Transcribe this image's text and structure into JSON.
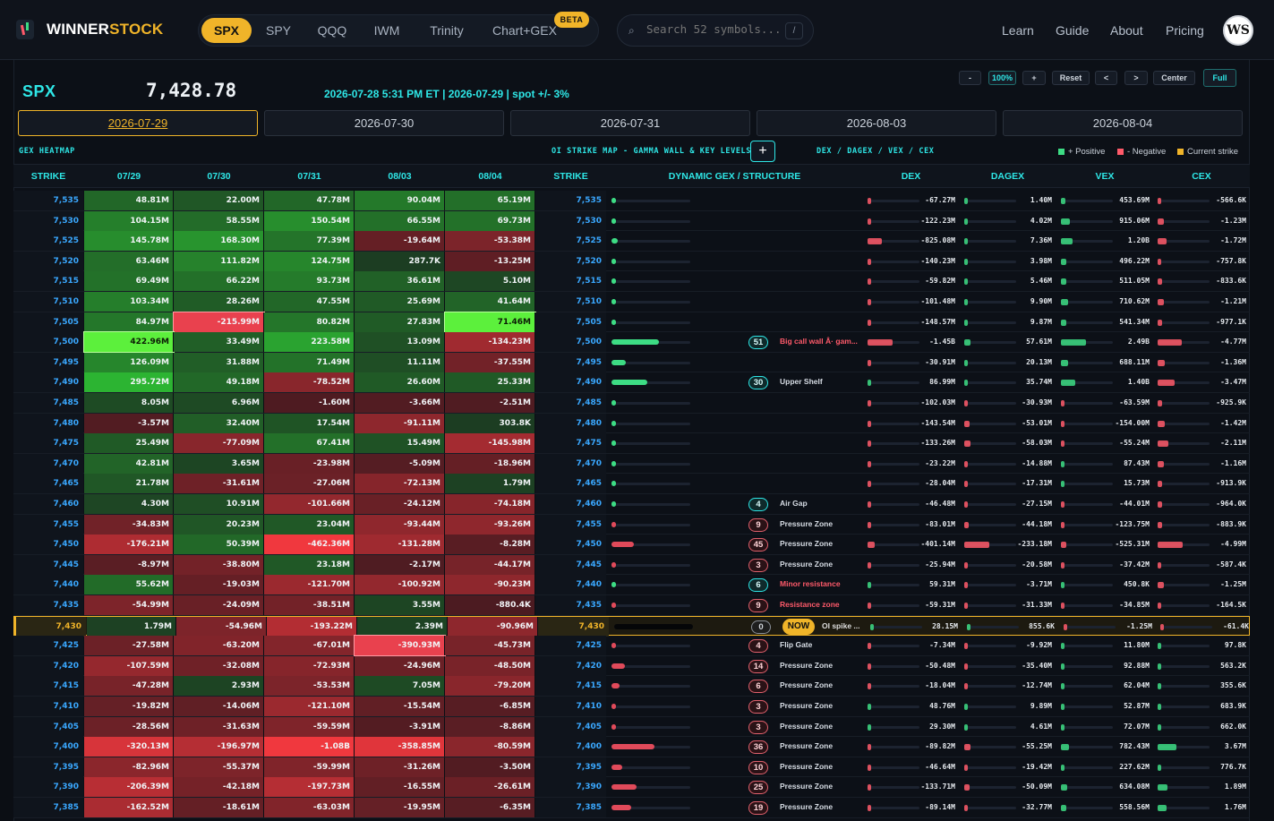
{
  "brand": {
    "name_a": "WINNER",
    "name_b": "STOCK"
  },
  "tabs": [
    {
      "label": "SPX",
      "active": true
    },
    {
      "label": "SPY"
    },
    {
      "label": "QQQ"
    },
    {
      "label": "IWM"
    },
    {
      "label": "Trinity"
    },
    {
      "label": "Chart+GEX"
    }
  ],
  "beta": "BETA",
  "search": {
    "placeholder": "Search 52 symbols...",
    "kbd": "/"
  },
  "nav": [
    "Learn",
    "Guide",
    "About",
    "Pricing"
  ],
  "avatar": "WS",
  "header": {
    "symbol": "SPX",
    "price": "7,428.78",
    "stamp": "2026-07-28 5:31 PM ET | 2026-07-29 | spot +/- 3%"
  },
  "controls": [
    "-",
    "100%",
    "+",
    "Reset",
    "<",
    ">",
    "Center",
    "Full"
  ],
  "expiries": [
    {
      "label": "2026-07-29",
      "active": true
    },
    {
      "label": "2026-07-30"
    },
    {
      "label": "2026-07-31"
    },
    {
      "label": "2026-08-03"
    },
    {
      "label": "2026-08-04"
    }
  ],
  "sections": {
    "heatmap": "GEX HEATMAP",
    "oi": "OI STRIKE MAP - GAMMA WALL & KEY LEVELS",
    "dex": "DEX / DAGEX / VEX / CEX"
  },
  "legend": {
    "pos": "+ Positive",
    "neg": "- Negative",
    "cur": "Current strike"
  },
  "columns": [
    "STRIKE",
    "07/29",
    "07/30",
    "07/31",
    "08/03",
    "08/04",
    "STRIKE",
    "DYNAMIC GEX / STRUCTURE",
    "DEX",
    "DAGEX",
    "VEX",
    "CEX"
  ],
  "colors": {
    "accent": "#2ee6e6",
    "gold": "#f0b429",
    "pos": "#3ddc84",
    "neg": "#ff5a6a"
  },
  "rows": [
    {
      "s": "7,535",
      "h": [
        "48.81M",
        "22.00M",
        "47.78M",
        "90.04M",
        "65.19M"
      ],
      "st": 0.02,
      "n": "",
      "b": "",
      "dex": "-67.27M",
      "dagex": "1.40M",
      "vex": "453.69M",
      "cex": "-566.6K"
    },
    {
      "s": "7,530",
      "h": [
        "104.15M",
        "58.55M",
        "150.54M",
        "66.55M",
        "69.73M"
      ],
      "st": 0.04,
      "n": "",
      "b": "",
      "dex": "-122.23M",
      "dagex": "4.02M",
      "vex": "915.06M",
      "cex": "-1.23M"
    },
    {
      "s": "7,525",
      "h": [
        "145.78M",
        "168.30M",
        "77.39M",
        "-19.64M",
        "-53.38M"
      ],
      "st": 0.08,
      "n": "",
      "b": "",
      "dex": "-825.08M",
      "dagex": "7.36M",
      "vex": "1.20B",
      "cex": "-1.72M"
    },
    {
      "s": "7,520",
      "h": [
        "63.46M",
        "111.82M",
        "124.75M",
        "287.7K",
        "-13.25M"
      ],
      "st": 0.03,
      "n": "",
      "b": "",
      "dex": "-140.23M",
      "dagex": "3.98M",
      "vex": "496.22M",
      "cex": "-757.8K"
    },
    {
      "s": "7,515",
      "h": [
        "69.49M",
        "66.22M",
        "93.73M",
        "36.61M",
        "5.10M"
      ],
      "st": 0.03,
      "n": "",
      "b": "",
      "dex": "-59.82M",
      "dagex": "5.46M",
      "vex": "511.05M",
      "cex": "-833.6K"
    },
    {
      "s": "7,510",
      "h": [
        "103.34M",
        "28.26M",
        "47.55M",
        "25.69M",
        "41.64M"
      ],
      "st": 0.03,
      "n": "",
      "b": "",
      "dex": "-101.48M",
      "dagex": "9.90M",
      "vex": "710.62M",
      "cex": "-1.21M"
    },
    {
      "s": "7,505",
      "h": [
        "84.97M",
        "-215.99M",
        "80.82M",
        "27.83M",
        "71.46M"
      ],
      "st": 0.04,
      "n": "",
      "b": "",
      "dex": "-148.57M",
      "dagex": "9.87M",
      "vex": "541.34M",
      "cex": "-977.1K"
    },
    {
      "s": "7,500",
      "h": [
        "422.96M",
        "33.49M",
        "223.58M",
        "13.09M",
        "-134.23M"
      ],
      "st": 0.6,
      "n": "51",
      "b": "Big call wall Â· gam...",
      "dex": "-1.45B",
      "dagex": "57.61M",
      "vex": "2.49B",
      "cex": "-4.77M"
    },
    {
      "s": "7,495",
      "h": [
        "126.09M",
        "31.88M",
        "71.49M",
        "11.11M",
        "-37.55M"
      ],
      "st": 0.18,
      "n": "",
      "b": "",
      "dex": "-30.91M",
      "dagex": "20.13M",
      "vex": "688.11M",
      "cex": "-1.36M"
    },
    {
      "s": "7,490",
      "h": [
        "295.72M",
        "49.18M",
        "-78.52M",
        "26.60M",
        "25.33M"
      ],
      "st": 0.45,
      "n": "30",
      "b": "Upper Shelf",
      "dex": "86.99M",
      "dagex": "35.74M",
      "vex": "1.40B",
      "cex": "-3.47M"
    },
    {
      "s": "7,485",
      "h": [
        "8.05M",
        "6.96M",
        "-1.60M",
        "-3.66M",
        "-2.51M"
      ],
      "st": 0.01,
      "n": "",
      "b": "",
      "dex": "-102.03M",
      "dagex": "-30.93M",
      "vex": "-63.59M",
      "cex": "-925.9K"
    },
    {
      "s": "7,480",
      "h": [
        "-3.57M",
        "32.40M",
        "17.54M",
        "-91.11M",
        "303.8K"
      ],
      "st": 0.01,
      "n": "",
      "b": "",
      "dex": "-143.54M",
      "dagex": "-53.01M",
      "vex": "-154.00M",
      "cex": "-1.42M"
    },
    {
      "s": "7,475",
      "h": [
        "25.49M",
        "-77.09M",
        "67.41M",
        "15.49M",
        "-145.98M"
      ],
      "st": 0.03,
      "n": "",
      "b": "",
      "dex": "-133.26M",
      "dagex": "-58.03M",
      "vex": "-55.24M",
      "cex": "-2.11M"
    },
    {
      "s": "7,470",
      "h": [
        "42.81M",
        "3.65M",
        "-23.98M",
        "-5.09M",
        "-18.96M"
      ],
      "st": 0.02,
      "n": "",
      "b": "",
      "dex": "-23.22M",
      "dagex": "-14.88M",
      "vex": "87.43M",
      "cex": "-1.16M"
    },
    {
      "s": "7,465",
      "h": [
        "21.78M",
        "-31.61M",
        "-27.06M",
        "-72.13M",
        "1.79M"
      ],
      "st": 0.01,
      "n": "",
      "b": "",
      "dex": "-28.04M",
      "dagex": "-17.31M",
      "vex": "15.73M",
      "cex": "-913.9K"
    },
    {
      "s": "7,460",
      "h": [
        "4.30M",
        "10.91M",
        "-101.66M",
        "-24.12M",
        "-74.18M"
      ],
      "st": 0.01,
      "n": "4",
      "b": "Air Gap",
      "dex": "-46.48M",
      "dagex": "-27.15M",
      "vex": "-44.01M",
      "cex": "-964.0K"
    },
    {
      "s": "7,455",
      "h": [
        "-34.83M",
        "20.23M",
        "23.04M",
        "-93.44M",
        "-93.26M"
      ],
      "st": -0.03,
      "n": "9",
      "b": "Pressure Zone",
      "dex": "-83.01M",
      "dagex": "-44.18M",
      "vex": "-123.75M",
      "cex": "-883.9K"
    },
    {
      "s": "7,450",
      "h": [
        "-176.21M",
        "50.39M",
        "-462.36M",
        "-131.28M",
        "-8.28M"
      ],
      "st": -0.28,
      "n": "45",
      "b": "Pressure Zone",
      "dex": "-401.14M",
      "dagex": "-233.18M",
      "vex": "-525.31M",
      "cex": "-4.99M"
    },
    {
      "s": "7,445",
      "h": [
        "-8.97M",
        "-38.80M",
        "23.18M",
        "-2.17M",
        "-44.17M"
      ],
      "st": -0.01,
      "n": "3",
      "b": "Pressure Zone",
      "dex": "-25.94M",
      "dagex": "-20.58M",
      "vex": "-37.42M",
      "cex": "-587.4K"
    },
    {
      "s": "7,440",
      "h": [
        "55.62M",
        "-19.03M",
        "-121.70M",
        "-100.92M",
        "-90.23M"
      ],
      "st": 0.03,
      "n": "6",
      "b": "Minor resistance",
      "dex": "59.31M",
      "dagex": "-3.71M",
      "vex": "450.8K",
      "cex": "-1.25M"
    },
    {
      "s": "7,435",
      "h": [
        "-54.99M",
        "-24.09M",
        "-38.51M",
        "3.55M",
        "-880.4K"
      ],
      "st": -0.02,
      "n": "9",
      "b": "Resistance zone",
      "dex": "-59.31M",
      "dagex": "-31.33M",
      "vex": "-34.85M",
      "cex": "-164.5K"
    },
    {
      "s": "7,430",
      "h": [
        "1.79M",
        "-54.96M",
        "-193.22M",
        "2.39M",
        "-90.96M"
      ],
      "st": 0.0,
      "n": "0",
      "b": "OI spike ...",
      "now": true,
      "dex": "28.15M",
      "dagex": "855.6K",
      "vex": "-1.25M",
      "cex": "-61.4K"
    },
    {
      "s": "7,425",
      "h": [
        "-27.58M",
        "-63.20M",
        "-67.01M",
        "-390.93M",
        "-45.73M"
      ],
      "st": -0.01,
      "n": "4",
      "b": "Flip Gate",
      "dex": "-7.34M",
      "dagex": "-9.92M",
      "vex": "11.80M",
      "cex": "97.8K"
    },
    {
      "s": "7,420",
      "h": [
        "-107.59M",
        "-32.08M",
        "-72.93M",
        "-24.96M",
        "-48.50M"
      ],
      "st": -0.17,
      "n": "14",
      "b": "Pressure Zone",
      "dex": "-50.48M",
      "dagex": "-35.40M",
      "vex": "92.88M",
      "cex": "563.2K"
    },
    {
      "s": "7,415",
      "h": [
        "-47.28M",
        "2.93M",
        "-53.53M",
        "7.05M",
        "-79.20M"
      ],
      "st": -0.1,
      "n": "6",
      "b": "Pressure Zone",
      "dex": "-18.04M",
      "dagex": "-12.74M",
      "vex": "62.04M",
      "cex": "355.6K"
    },
    {
      "s": "7,410",
      "h": [
        "-19.82M",
        "-14.06M",
        "-121.10M",
        "-15.54M",
        "-6.85M"
      ],
      "st": -0.02,
      "n": "3",
      "b": "Pressure Zone",
      "dex": "48.76M",
      "dagex": "9.89M",
      "vex": "52.87M",
      "cex": "683.9K"
    },
    {
      "s": "7,405",
      "h": [
        "-28.56M",
        "-31.63M",
        "-59.59M",
        "-3.91M",
        "-8.86M"
      ],
      "st": -0.02,
      "n": "3",
      "b": "Pressure Zone",
      "dex": "29.30M",
      "dagex": "4.61M",
      "vex": "72.07M",
      "cex": "662.0K"
    },
    {
      "s": "7,400",
      "h": [
        "-320.13M",
        "-196.97M",
        "-1.08B",
        "-358.85M",
        "-80.59M"
      ],
      "st": -0.55,
      "n": "36",
      "b": "Pressure Zone",
      "dex": "-89.82M",
      "dagex": "-55.25M",
      "vex": "782.43M",
      "cex": "3.67M"
    },
    {
      "s": "7,395",
      "h": [
        "-82.96M",
        "-55.37M",
        "-59.99M",
        "-31.26M",
        "-3.50M"
      ],
      "st": -0.14,
      "n": "10",
      "b": "Pressure Zone",
      "dex": "-46.64M",
      "dagex": "-19.42M",
      "vex": "227.62M",
      "cex": "776.7K"
    },
    {
      "s": "7,390",
      "h": [
        "-206.39M",
        "-42.18M",
        "-197.73M",
        "-16.55M",
        "-26.61M"
      ],
      "st": -0.32,
      "n": "25",
      "b": "Pressure Zone",
      "dex": "-133.71M",
      "dagex": "-50.09M",
      "vex": "634.08M",
      "cex": "1.89M"
    },
    {
      "s": "7,385",
      "h": [
        "-162.52M",
        "-18.61M",
        "-63.03M",
        "-19.95M",
        "-6.35M"
      ],
      "st": -0.25,
      "n": "19",
      "b": "Pressure Zone",
      "dex": "-89.14M",
      "dagex": "-32.77M",
      "vex": "558.56M",
      "cex": "1.76M"
    }
  ]
}
